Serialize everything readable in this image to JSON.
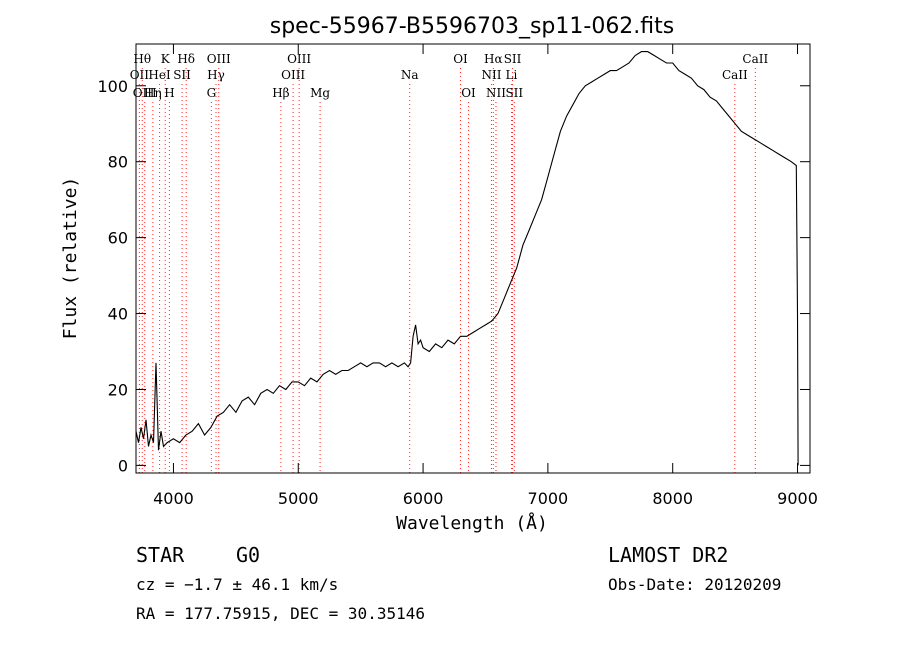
{
  "chart_data": {
    "type": "line",
    "title": "spec-55967-B5596703_sp11-062.fits",
    "xlabel": "Wavelength (Å)",
    "ylabel": "Flux (relative)",
    "xlim": [
      3700,
      9100
    ],
    "ylim": [
      -2,
      111
    ],
    "x_ticks": [
      4000,
      5000,
      6000,
      7000,
      8000,
      9000
    ],
    "y_ticks": [
      0,
      20,
      40,
      60,
      80,
      100
    ],
    "grid": false,
    "line_color": "#000000",
    "marker_color": "#ff0000",
    "series": [
      {
        "x": [
          3700,
          3720,
          3740,
          3760,
          3780,
          3800,
          3820,
          3840,
          3860,
          3880,
          3900,
          3920,
          3950,
          4000,
          4050,
          4100,
          4150,
          4200,
          4250,
          4300,
          4350,
          4400,
          4450,
          4500,
          4550,
          4600,
          4650,
          4700,
          4750,
          4800,
          4850,
          4900,
          4950,
          5000,
          5050,
          5100,
          5150,
          5200,
          5250,
          5300,
          5350,
          5400,
          5450,
          5500,
          5550,
          5600,
          5650,
          5700,
          5750,
          5800,
          5850,
          5880,
          5900,
          5920,
          5940,
          5960,
          5980,
          6000,
          6050,
          6100,
          6150,
          6200,
          6250,
          6300,
          6350,
          6400,
          6450,
          6500,
          6550,
          6600,
          6650,
          6700,
          6750,
          6800,
          6850,
          6900,
          6950,
          7000,
          7050,
          7100,
          7150,
          7200,
          7250,
          7300,
          7350,
          7400,
          7450,
          7500,
          7550,
          7600,
          7650,
          7700,
          7750,
          7800,
          7850,
          7900,
          7950,
          8000,
          8050,
          8100,
          8150,
          8200,
          8250,
          8300,
          8350,
          8400,
          8450,
          8500,
          8550,
          8600,
          8650,
          8700,
          8750,
          8800,
          8850,
          8900,
          8950,
          8990,
          9000,
          9005
        ],
        "y": [
          9,
          6,
          10,
          7,
          12,
          5,
          8,
          6,
          27,
          4,
          9,
          5,
          6,
          7,
          6,
          8,
          9,
          11,
          8,
          10,
          13,
          14,
          16,
          14,
          17,
          18,
          16,
          19,
          20,
          19,
          21,
          20,
          22,
          22,
          21,
          23,
          22,
          24,
          25,
          24,
          25,
          25,
          26,
          27,
          26,
          27,
          27,
          26,
          27,
          26,
          27,
          26,
          27,
          34,
          37,
          32,
          33,
          31,
          30,
          32,
          31,
          33,
          32,
          34,
          34,
          35,
          36,
          37,
          38,
          40,
          44,
          48,
          52,
          58,
          62,
          66,
          70,
          76,
          82,
          88,
          92,
          95,
          98,
          100,
          101,
          102,
          103,
          104,
          104,
          105,
          106,
          108,
          109,
          109,
          108,
          107,
          106,
          106,
          104,
          103,
          102,
          100,
          99,
          97,
          96,
          94,
          92,
          90,
          88,
          87,
          86,
          85,
          84,
          83,
          82,
          81,
          80,
          79,
          40,
          0
        ]
      }
    ],
    "line_markers": [
      {
        "x": 3727,
        "label": "OII",
        "row": 2
      },
      {
        "x": 3750,
        "label": "Hθ",
        "row": 1
      },
      {
        "x": 3770,
        "label": "OIII",
        "row": 3
      },
      {
        "x": 3835,
        "label": "Hη",
        "row": 3
      },
      {
        "x": 3889,
        "label": "HeI",
        "row": 2
      },
      {
        "x": 3934,
        "label": "K",
        "row": 1
      },
      {
        "x": 3968,
        "label": "H",
        "row": 3
      },
      {
        "x": 4069,
        "label": "SII",
        "row": 2
      },
      {
        "x": 4102,
        "label": "Hδ",
        "row": 1
      },
      {
        "x": 4304,
        "label": "G",
        "row": 3
      },
      {
        "x": 4341,
        "label": "Hγ",
        "row": 2
      },
      {
        "x": 4363,
        "label": "OIII",
        "row": 1
      },
      {
        "x": 4861,
        "label": "Hβ",
        "row": 3
      },
      {
        "x": 4959,
        "label": "OIII",
        "row": 2
      },
      {
        "x": 5007,
        "label": "OIII",
        "row": 1
      },
      {
        "x": 5175,
        "label": "Mg",
        "row": 3
      },
      {
        "x": 5893,
        "label": "Na",
        "row": 2
      },
      {
        "x": 6300,
        "label": "OI",
        "row": 1
      },
      {
        "x": 6364,
        "label": "OI",
        "row": 3
      },
      {
        "x": 6548,
        "label": "NII",
        "row": 2
      },
      {
        "x": 6563,
        "label": "Hα",
        "row": 1
      },
      {
        "x": 6584,
        "label": "NII",
        "row": 3
      },
      {
        "x": 6708,
        "label": "Li",
        "row": 2
      },
      {
        "x": 6717,
        "label": "SII",
        "row": 1
      },
      {
        "x": 6731,
        "label": "SII",
        "row": 3
      },
      {
        "x": 8498,
        "label": "CaII",
        "row": 2
      },
      {
        "x": 8662,
        "label": "CaII",
        "row": 1
      }
    ]
  },
  "info": {
    "object_class": "STAR",
    "subclass": "G0",
    "redshift": "cz = −1.7 ± 46.1 km/s",
    "coords": "RA = 177.75915, DEC =  30.35146",
    "survey": "LAMOST DR2",
    "obs_date": "Obs-Date: 20120209"
  }
}
